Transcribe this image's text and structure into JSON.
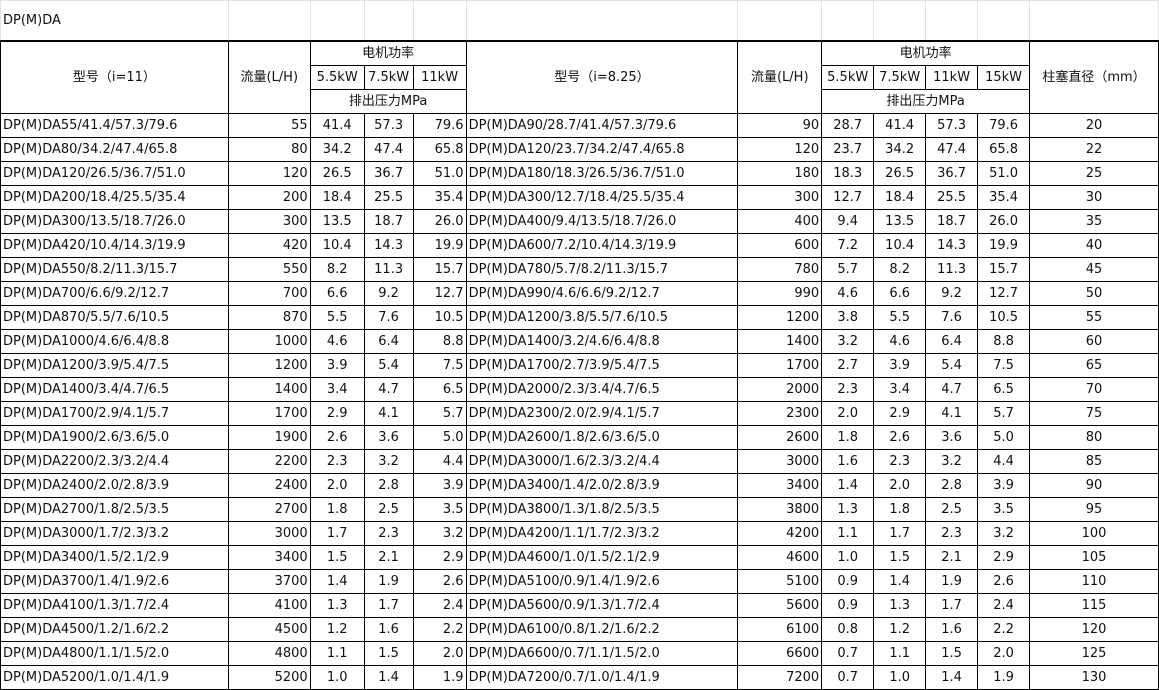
{
  "title": "DP(M)DA",
  "header": {
    "model_left": "型号（i=11）",
    "flow": "流量(L/H)",
    "motor_power": "电机功率",
    "model_right": "型号（i=8.25）",
    "plunger": "柱塞直径（mm）",
    "pressure": "排出压力MPa",
    "powers_left": [
      "5.5kW",
      "7.5kW",
      "11kW"
    ],
    "powers_right": [
      "5.5kW",
      "7.5kW",
      "11kW",
      "15kW"
    ]
  },
  "rows": [
    [
      "DP(M)DA55/41.4/57.3/79.6",
      "55",
      "41.4",
      "57.3",
      "79.6",
      "DP(M)DA90/28.7/41.4/57.3/79.6",
      "90",
      "28.7",
      "41.4",
      "57.3",
      "79.6",
      "20"
    ],
    [
      "DP(M)DA80/34.2/47.4/65.8",
      "80",
      "34.2",
      "47.4",
      "65.8",
      "DP(M)DA120/23.7/34.2/47.4/65.8",
      "120",
      "23.7",
      "34.2",
      "47.4",
      "65.8",
      "22"
    ],
    [
      "DP(M)DA120/26.5/36.7/51.0",
      "120",
      "26.5",
      "36.7",
      "51.0",
      "DP(M)DA180/18.3/26.5/36.7/51.0",
      "180",
      "18.3",
      "26.5",
      "36.7",
      "51.0",
      "25"
    ],
    [
      "DP(M)DA200/18.4/25.5/35.4",
      "200",
      "18.4",
      "25.5",
      "35.4",
      "DP(M)DA300/12.7/18.4/25.5/35.4",
      "300",
      "12.7",
      "18.4",
      "25.5",
      "35.4",
      "30"
    ],
    [
      "DP(M)DA300/13.5/18.7/26.0",
      "300",
      "13.5",
      "18.7",
      "26.0",
      "DP(M)DA400/9.4/13.5/18.7/26.0",
      "400",
      "9.4",
      "13.5",
      "18.7",
      "26.0",
      "35"
    ],
    [
      "DP(M)DA420/10.4/14.3/19.9",
      "420",
      "10.4",
      "14.3",
      "19.9",
      "DP(M)DA600/7.2/10.4/14.3/19.9",
      "600",
      "7.2",
      "10.4",
      "14.3",
      "19.9",
      "40"
    ],
    [
      "DP(M)DA550/8.2/11.3/15.7",
      "550",
      "8.2",
      "11.3",
      "15.7",
      "DP(M)DA780/5.7/8.2/11.3/15.7",
      "780",
      "5.7",
      "8.2",
      "11.3",
      "15.7",
      "45"
    ],
    [
      "DP(M)DA700/6.6/9.2/12.7",
      "700",
      "6.6",
      "9.2",
      "12.7",
      "DP(M)DA990/4.6/6.6/9.2/12.7",
      "990",
      "4.6",
      "6.6",
      "9.2",
      "12.7",
      "50"
    ],
    [
      "DP(M)DA870/5.5/7.6/10.5",
      "870",
      "5.5",
      "7.6",
      "10.5",
      "DP(M)DA1200/3.8/5.5/7.6/10.5",
      "1200",
      "3.8",
      "5.5",
      "7.6",
      "10.5",
      "55"
    ],
    [
      "DP(M)DA1000/4.6/6.4/8.8",
      "1000",
      "4.6",
      "6.4",
      "8.8",
      "DP(M)DA1400/3.2/4.6/6.4/8.8",
      "1400",
      "3.2",
      "4.6",
      "6.4",
      "8.8",
      "60"
    ],
    [
      "DP(M)DA1200/3.9/5.4/7.5",
      "1200",
      "3.9",
      "5.4",
      "7.5",
      "DP(M)DA1700/2.7/3.9/5.4/7.5",
      "1700",
      "2.7",
      "3.9",
      "5.4",
      "7.5",
      "65"
    ],
    [
      "DP(M)DA1400/3.4/4.7/6.5",
      "1400",
      "3.4",
      "4.7",
      "6.5",
      "DP(M)DA2000/2.3/3.4/4.7/6.5",
      "2000",
      "2.3",
      "3.4",
      "4.7",
      "6.5",
      "70"
    ],
    [
      "DP(M)DA1700/2.9/4.1/5.7",
      "1700",
      "2.9",
      "4.1",
      "5.7",
      "DP(M)DA2300/2.0/2.9/4.1/5.7",
      "2300",
      "2.0",
      "2.9",
      "4.1",
      "5.7",
      "75"
    ],
    [
      "DP(M)DA1900/2.6/3.6/5.0",
      "1900",
      "2.6",
      "3.6",
      "5.0",
      "DP(M)DA2600/1.8/2.6/3.6/5.0",
      "2600",
      "1.8",
      "2.6",
      "3.6",
      "5.0",
      "80"
    ],
    [
      "DP(M)DA2200/2.3/3.2/4.4",
      "2200",
      "2.3",
      "3.2",
      "4.4",
      "DP(M)DA3000/1.6/2.3/3.2/4.4",
      "3000",
      "1.6",
      "2.3",
      "3.2",
      "4.4",
      "85"
    ],
    [
      "DP(M)DA2400/2.0/2.8/3.9",
      "2400",
      "2.0",
      "2.8",
      "3.9",
      "DP(M)DA3400/1.4/2.0/2.8/3.9",
      "3400",
      "1.4",
      "2.0",
      "2.8",
      "3.9",
      "90"
    ],
    [
      "DP(M)DA2700/1.8/2.5/3.5",
      "2700",
      "1.8",
      "2.5",
      "3.5",
      "DP(M)DA3800/1.3/1.8/2.5/3.5",
      "3800",
      "1.3",
      "1.8",
      "2.5",
      "3.5",
      "95"
    ],
    [
      "DP(M)DA3000/1.7/2.3/3.2",
      "3000",
      "1.7",
      "2.3",
      "3.2",
      "DP(M)DA4200/1.1/1.7/2.3/3.2",
      "4200",
      "1.1",
      "1.7",
      "2.3",
      "3.2",
      "100"
    ],
    [
      "DP(M)DA3400/1.5/2.1/2.9",
      "3400",
      "1.5",
      "2.1",
      "2.9",
      "DP(M)DA4600/1.0/1.5/2.1/2.9",
      "4600",
      "1.0",
      "1.5",
      "2.1",
      "2.9",
      "105"
    ],
    [
      "DP(M)DA3700/1.4/1.9/2.6",
      "3700",
      "1.4",
      "1.9",
      "2.6",
      "DP(M)DA5100/0.9/1.4/1.9/2.6",
      "5100",
      "0.9",
      "1.4",
      "1.9",
      "2.6",
      "110"
    ],
    [
      "DP(M)DA4100/1.3/1.7/2.4",
      "4100",
      "1.3",
      "1.7",
      "2.4",
      "DP(M)DA5600/0.9/1.3/1.7/2.4",
      "5600",
      "0.9",
      "1.3",
      "1.7",
      "2.4",
      "115"
    ],
    [
      "DP(M)DA4500/1.2/1.6/2.2",
      "4500",
      "1.2",
      "1.6",
      "2.2",
      "DP(M)DA6100/0.8/1.2/1.6/2.2",
      "6100",
      "0.8",
      "1.2",
      "1.6",
      "2.2",
      "120"
    ],
    [
      "DP(M)DA4800/1.1/1.5/2.0",
      "4800",
      "1.1",
      "1.5",
      "2.0",
      "DP(M)DA6600/0.7/1.1/1.5/2.0",
      "6600",
      "0.7",
      "1.1",
      "1.5",
      "2.0",
      "125"
    ],
    [
      "DP(M)DA5200/1.0/1.4/1.9",
      "5200",
      "1.0",
      "1.4",
      "1.9",
      "DP(M)DA7200/0.7/1.0/1.4/1.9",
      "7200",
      "0.7",
      "1.0",
      "1.4",
      "1.9",
      "130"
    ]
  ]
}
